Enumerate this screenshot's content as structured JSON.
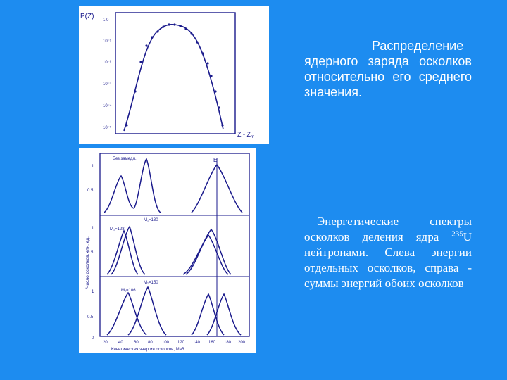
{
  "top_chart": {
    "ylabel": "P(Z)",
    "xlabel": "Z - Z",
    "xlabel_sub": "m",
    "y_ticks": [
      "1.0",
      "10⁻¹",
      "10⁻²",
      "10⁻³",
      "10⁻⁴",
      "10⁻⁵"
    ]
  },
  "bottom_chart": {
    "ylabel": "Число осколков, отн. ед.",
    "xlabel": "Кинетическая энергия осколков, МэВ",
    "x_ticks": [
      "20",
      "40",
      "60",
      "80",
      "100",
      "120",
      "140",
      "160",
      "180",
      "200"
    ],
    "y_ticks": [
      "1",
      "0.5",
      "1",
      "0.5",
      "1",
      "0.5",
      "0"
    ],
    "row_labels": [
      "Без замедл.",
      "M₁=130",
      "M₁=128",
      "M₁=150",
      "M₁=106"
    ],
    "marker_label": "E"
  },
  "caption1": {
    "text": "Распределение ядерного заряда осколков относительно его среднего значения."
  },
  "caption2": {
    "text_before": "Энергетические спектры осколков деления ядра ",
    "isotope_mass": "235",
    "isotope_symbol": "U",
    "text_after": " нейтронами. Слева энергии отдельных осколков, справа - суммы энергий обоих осколков"
  },
  "colors": {
    "background": "#1d8cf0",
    "panel": "#ffffff",
    "ink": "#1a1a8c"
  }
}
